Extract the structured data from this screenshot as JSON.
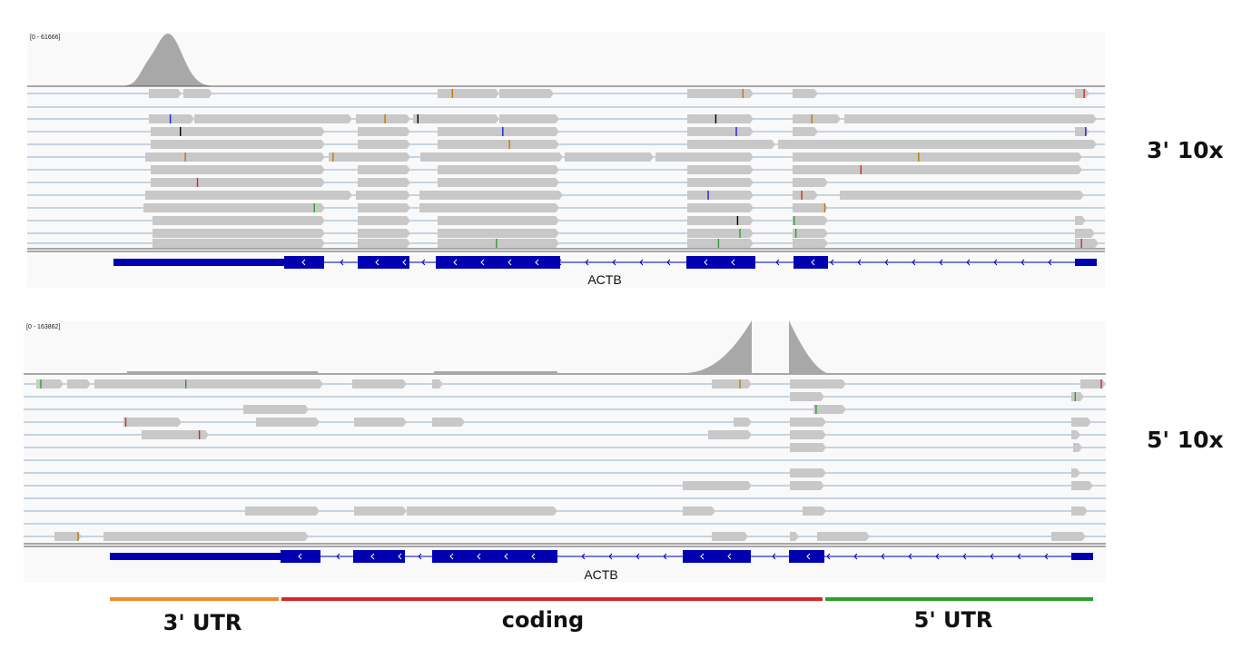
{
  "panels": [
    {
      "id": "three-prime",
      "range_label": "[0 - 61666]",
      "side_label": "3' 10x",
      "gene": "ACTB"
    },
    {
      "id": "five-prime",
      "range_label": "[0 - 163862]",
      "side_label": "5' 10x",
      "gene": "ACTB"
    }
  ],
  "regions": [
    {
      "label": "3' UTR",
      "color": "#f08a30"
    },
    {
      "label": "coding",
      "color": "#d62728"
    },
    {
      "label": "5' UTR",
      "color": "#2ca02c"
    }
  ],
  "colors": {
    "coverage": "#a8a8a8",
    "read": "#c8c8c8",
    "read_line": "#8fb0d0",
    "gene": "#0000b0",
    "mismatch_a": "#2ca02c",
    "mismatch_c": "#2020e0",
    "mismatch_g": "#c07a00",
    "mismatch_t": "#d62728",
    "softclip": "#6464e0"
  }
}
